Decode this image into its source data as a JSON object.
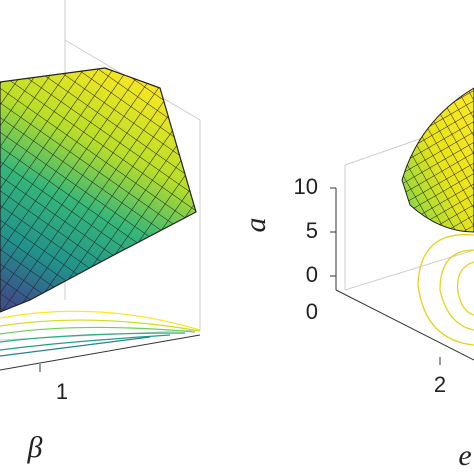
{
  "panels": [
    {
      "x_ticks": [
        1
      ],
      "x_label": "β"
    },
    {
      "z_ticks": [
        10,
        5,
        0
      ],
      "x_ticks": [
        0
      ],
      "y_ticks": [
        2
      ],
      "z_label": "a",
      "y_label": "e"
    }
  ]
}
